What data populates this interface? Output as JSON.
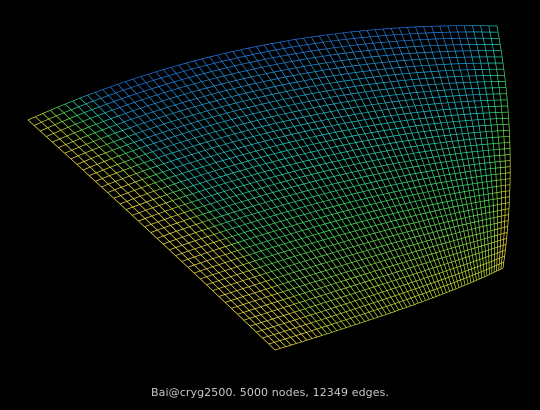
{
  "caption": "Bai@cryg2500. 5000 nodes, 12349 edges.",
  "graph": {
    "name": "Bai@cryg2500",
    "nodes": 5000,
    "edges": 12349
  },
  "colors": {
    "background": "#000000",
    "caption": "#c8c8c8",
    "mesh_gradient": [
      "#2233ff",
      "#1f8fe0",
      "#1fd0c0",
      "#44e060",
      "#c8e030",
      "#f0e040"
    ]
  }
}
